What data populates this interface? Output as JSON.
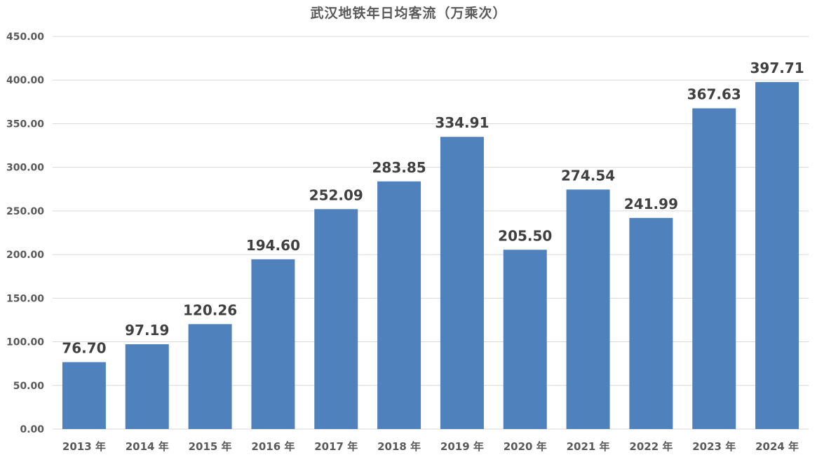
{
  "chart_data": {
    "type": "bar",
    "title": "武汉地铁年日均客流（万乘次）",
    "xlabel": "",
    "ylabel": "",
    "categories": [
      "2013 年",
      "2014 年",
      "2015 年",
      "2016 年",
      "2017 年",
      "2018 年",
      "2019 年",
      "2020 年",
      "2021 年",
      "2022 年",
      "2023 年",
      "2024 年"
    ],
    "values": [
      76.7,
      97.19,
      120.26,
      194.6,
      252.09,
      283.85,
      334.91,
      205.5,
      274.54,
      241.99,
      367.63,
      397.71
    ],
    "value_labels": [
      "76.70",
      "97.19",
      "120.26",
      "194.60",
      "252.09",
      "283.85",
      "334.91",
      "205.50",
      "274.54",
      "241.99",
      "367.63",
      "397.71"
    ],
    "ylim": [
      0,
      450
    ],
    "yticks": [
      "0.00",
      "50.00",
      "100.00",
      "150.00",
      "200.00",
      "250.00",
      "300.00",
      "350.00",
      "400.00",
      "450.00"
    ],
    "grid": true,
    "legend": "none",
    "colors": {
      "bar": "#4f81bd",
      "grid": "#d9d9d9",
      "axis_text": "#595959",
      "value_label": "#404040"
    }
  }
}
